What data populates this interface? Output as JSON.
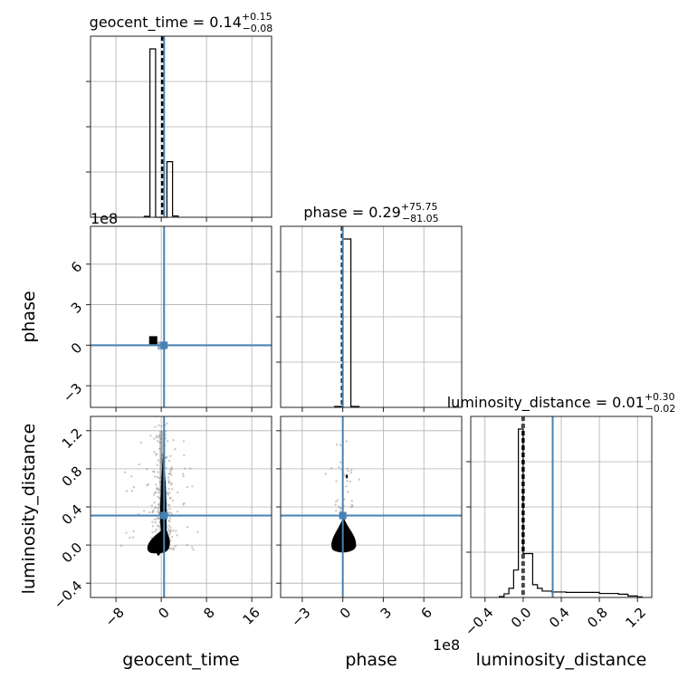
{
  "chart_data": {
    "type": "corner",
    "parameters": [
      "geocent_time",
      "phase",
      "luminosity_distance"
    ],
    "offsets": {
      "phase_scale": "1e8"
    },
    "titles": {
      "geocent_time": {
        "label": "geocent_time = 0.14",
        "plus": "+0.15",
        "minus": "−0.08"
      },
      "phase": {
        "label": "phase = 0.29",
        "plus": "+75.75",
        "minus": "−81.05"
      },
      "luminosity_distance": {
        "label": "luminosity_distance = 0.01",
        "plus": "+0.30",
        "minus": "−0.02"
      }
    },
    "axis_ranges": {
      "geocent_time": [
        -12.5,
        19.5
      ],
      "phase": [
        -4.6,
        8.8
      ],
      "luminosity_distance": [
        -0.55,
        1.35
      ]
    },
    "ticks": {
      "geocent_time": [
        {
          "v": -8,
          "t": "−8"
        },
        {
          "v": 0,
          "t": "0"
        },
        {
          "v": 8,
          "t": "8"
        },
        {
          "v": 16,
          "t": "16"
        }
      ],
      "phase": [
        {
          "v": -3,
          "t": "−3"
        },
        {
          "v": 0,
          "t": "0"
        },
        {
          "v": 3,
          "t": "3"
        },
        {
          "v": 6,
          "t": "6"
        }
      ],
      "luminosity_distance": [
        {
          "v": -0.4,
          "t": "−0.4"
        },
        {
          "v": 0.0,
          "t": "0.0"
        },
        {
          "v": 0.4,
          "t": "0.4"
        },
        {
          "v": 0.8,
          "t": "0.8"
        },
        {
          "v": 1.2,
          "t": "1.2"
        }
      ]
    },
    "truths": {
      "geocent_time": 0.5,
      "phase": 0.0,
      "luminosity_distance": 0.31
    },
    "quantiles": {
      "geocent_time": [
        0.06,
        0.14,
        0.29
      ],
      "phase": [
        -0.1,
        0.0,
        0.0
      ],
      "luminosity_distance": [
        -0.01,
        0.01,
        0.31
      ]
    },
    "histograms": {
      "geocent_time": {
        "edges": [
          -3,
          -2,
          -1,
          0,
          1,
          2,
          3
        ],
        "counts": [
          0.005,
          0.94,
          0.0,
          0.0,
          0.31,
          0.007
        ]
      },
      "phase": {
        "edges": [
          -0.6,
          0.0,
          0.6,
          1.2
        ],
        "counts": [
          0.005,
          0.88,
          0.005
        ]
      },
      "luminosity_distance": {
        "edges": [
          -0.25,
          -0.2,
          -0.15,
          -0.1,
          -0.05,
          0.0,
          0.05,
          0.1,
          0.15,
          0.2,
          0.3,
          0.45,
          0.6,
          0.8,
          1.0,
          1.1,
          1.2,
          1.25
        ],
        "counts": [
          0.005,
          0.02,
          0.05,
          0.15,
          0.92,
          0.24,
          0.24,
          0.07,
          0.05,
          0.035,
          0.03,
          0.028,
          0.028,
          0.022,
          0.018,
          0.008,
          0.003
        ]
      }
    },
    "grid": true
  }
}
